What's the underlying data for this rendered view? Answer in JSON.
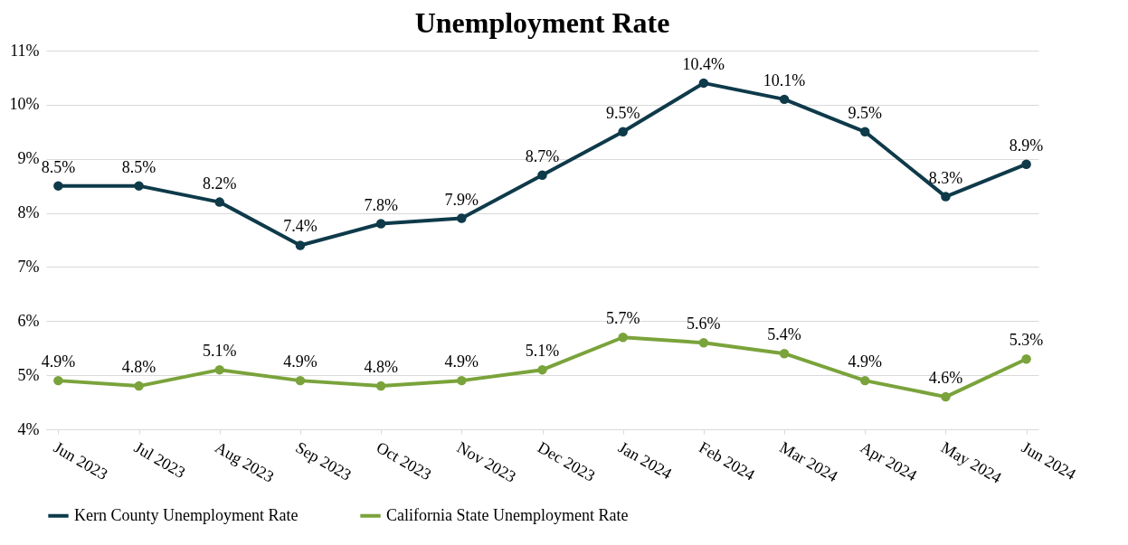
{
  "chart_data": {
    "type": "line",
    "title": "Unemployment Rate",
    "categories": [
      "Jun 2023",
      "Jul 2023",
      "Aug 2023",
      "Sep 2023",
      "Oct 2023",
      "Nov 2023",
      "Dec 2023",
      "Jan 2024",
      "Feb 2024",
      "Mar 2024",
      "Apr 2024",
      "May 2024",
      "Jun 2024"
    ],
    "series": [
      {
        "name": "Kern County Unemployment Rate",
        "color": "#0e3a4a",
        "values": [
          8.5,
          8.5,
          8.2,
          7.4,
          7.8,
          7.9,
          8.7,
          9.5,
          10.4,
          10.1,
          9.5,
          8.3,
          8.9
        ],
        "value_labels": [
          "8.5%",
          "8.5%",
          "8.2%",
          "7.4%",
          "7.8%",
          "7.9%",
          "8.7%",
          "9.5%",
          "10.4%",
          "10.1%",
          "9.5%",
          "8.3%",
          "8.9%"
        ]
      },
      {
        "name": "California State Unemployment Rate",
        "color": "#7aa33b",
        "values": [
          4.9,
          4.8,
          5.1,
          4.9,
          4.8,
          4.9,
          5.1,
          5.7,
          5.6,
          5.4,
          4.9,
          4.6,
          5.3
        ],
        "value_labels": [
          "4.9%",
          "4.8%",
          "5.1%",
          "4.9%",
          "4.8%",
          "4.9%",
          "5.1%",
          "5.7%",
          "5.6%",
          "5.4%",
          "4.9%",
          "4.6%",
          "5.3%"
        ]
      }
    ],
    "ylim": [
      4,
      11
    ],
    "yticks": [
      {
        "value": 4,
        "label": "4%"
      },
      {
        "value": 5,
        "label": "5%"
      },
      {
        "value": 6,
        "label": "6%"
      },
      {
        "value": 7,
        "label": "7%"
      },
      {
        "value": 8,
        "label": "8%"
      },
      {
        "value": 9,
        "label": "9%"
      },
      {
        "value": 10,
        "label": "10%"
      },
      {
        "value": 11,
        "label": "11%"
      }
    ],
    "grid": "y",
    "legend": "bottom",
    "marker": "circle",
    "line_style": "solid"
  }
}
